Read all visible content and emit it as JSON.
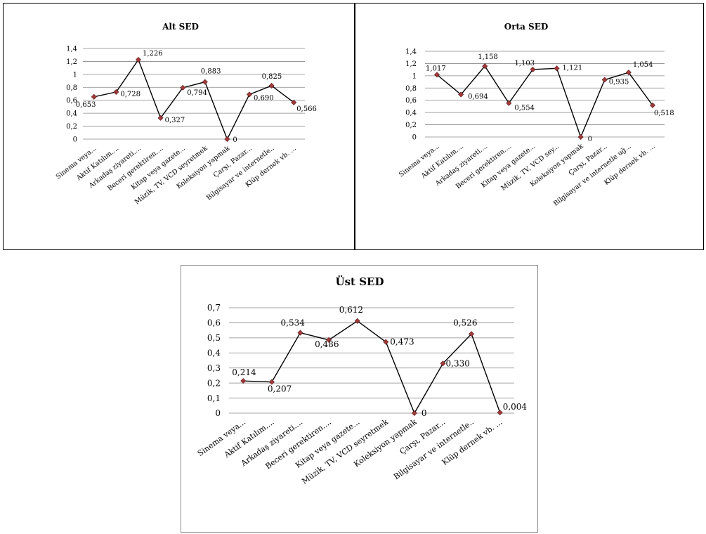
{
  "colors": {
    "line": "#000000",
    "marker": "#a23a3a",
    "grid": "#888888"
  },
  "chart_data": [
    {
      "type": "line",
      "title": "Alt SED",
      "categories": [
        "Sinema veya...",
        "Aktif Katılım....",
        "Arkadaş ziyareti....",
        "Beceri gerektiren....",
        "Kitap veya gazete...",
        "Müzik, TV, VCD seyretmek",
        "Koleksiyon yapmak",
        "Çarşı, Pazar...",
        "Bilgisayar ve internetle..",
        "Klüp dernek vb. ..."
      ],
      "values": [
        0.653,
        0.728,
        1.226,
        0.327,
        0.794,
        0.883,
        0,
        0.69,
        0.825,
        0.566
      ],
      "data_labels": [
        "0,653",
        "0,728",
        "1,226",
        "0,327",
        "0,794",
        "0,883",
        "0",
        "0,690",
        "0,825",
        "0,566"
      ],
      "ylim": [
        0,
        1.4
      ],
      "yticks": [
        "0",
        "0,2",
        "0,4",
        "0,6",
        "0,8",
        "1",
        "1,2",
        "1,4"
      ],
      "grid": true,
      "legend": "none"
    },
    {
      "type": "line",
      "title": "Orta SED",
      "categories": [
        "Sinema veya...",
        "Aktif Katılım....",
        "Arkadaş ziyareti....",
        "Beceri gerektiren....",
        "Kitap veya gazete...",
        "Müzik, TV, VCD sey...",
        "Koleksiyon yapmak",
        "Çarşı, Pazar...",
        "Bilgisayar ve internetle uğ...",
        "Klüp dernek vb. ..."
      ],
      "values": [
        1.017,
        0.694,
        1.158,
        0.554,
        1.103,
        1.121,
        0,
        0.935,
        1.054,
        0.518
      ],
      "data_labels": [
        "1,017",
        "0,694",
        "1,158",
        "0,554",
        "1,103",
        "1,121",
        "0",
        "0,935",
        "1,054",
        "0,518"
      ],
      "ylim": [
        0,
        1.4
      ],
      "yticks": [
        "0",
        "0,2",
        "0,4",
        "0,6",
        "0,8",
        "1",
        "1,2",
        "1,4"
      ],
      "grid": true,
      "legend": "none"
    },
    {
      "type": "line",
      "title": "Üst SED",
      "categories": [
        "Sinema veya...",
        "Aktif Katılım....",
        "Arkadaş ziyareti....",
        "Beceri gerektiren....",
        "Kitap veya gazete...",
        "Müzik, TV, VCD seyretmek",
        "Koleksiyon yapmak",
        "Çarşı, Pazar...",
        "Bilgisayar ve internetle..",
        "Klüp dernek vb. ..."
      ],
      "values": [
        0.214,
        0.207,
        0.534,
        0.486,
        0.612,
        0.473,
        0,
        0.33,
        0.526,
        0.004
      ],
      "data_labels": [
        "0,214",
        "0,207",
        "0,534",
        "0,486",
        "0,612",
        "0,473",
        "0",
        "0,330",
        "0,526",
        "0,004"
      ],
      "ylim": [
        0,
        0.7
      ],
      "yticks": [
        "0",
        "0,1",
        "0,2",
        "0,3",
        "0,4",
        "0,5",
        "0,6",
        "0,7"
      ],
      "grid": true,
      "legend": "none"
    }
  ]
}
